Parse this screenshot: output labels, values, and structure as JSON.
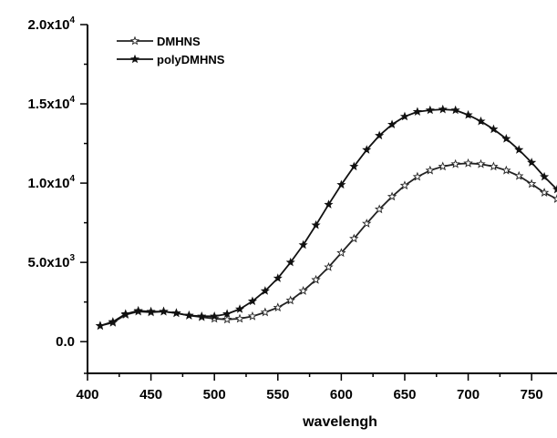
{
  "chart_data": {
    "type": "line",
    "title": "",
    "xlabel": "wavelengh",
    "ylabel": "",
    "xlim": [
      400,
      770
    ],
    "ylim": [
      -2000,
      20000
    ],
    "xticks": [
      400,
      450,
      500,
      550,
      600,
      650,
      700,
      750
    ],
    "xtick_labels": [
      "400",
      "450",
      "500",
      "550",
      "600",
      "650",
      "700",
      "750"
    ],
    "yticks": [
      0,
      5000,
      10000,
      15000,
      20000
    ],
    "ytick_labels": [
      {
        "base": "0.0",
        "exp": ""
      },
      {
        "base": "5.0x10",
        "exp": "3"
      },
      {
        "base": "1.0x10",
        "exp": "4"
      },
      {
        "base": "1.5x10",
        "exp": "4"
      },
      {
        "base": "2.0x10",
        "exp": "4"
      }
    ],
    "grid": false,
    "legend": {
      "position": "top-left"
    },
    "series": [
      {
        "name": "DMHNS",
        "marker": "open-star",
        "color": "#222222",
        "x": [
          410,
          420,
          430,
          440,
          450,
          460,
          470,
          480,
          490,
          500,
          510,
          520,
          530,
          540,
          550,
          560,
          570,
          580,
          590,
          600,
          610,
          620,
          630,
          640,
          650,
          660,
          670,
          680,
          690,
          700,
          710,
          720,
          730,
          740,
          750,
          760,
          770
        ],
        "values": [
          1000,
          1200,
          1700,
          1900,
          1850,
          1900,
          1800,
          1650,
          1550,
          1450,
          1400,
          1450,
          1600,
          1850,
          2150,
          2600,
          3200,
          3900,
          4700,
          5600,
          6500,
          7450,
          8350,
          9150,
          9850,
          10400,
          10800,
          11050,
          11200,
          11250,
          11200,
          11050,
          10800,
          10450,
          9950,
          9400,
          9000
        ]
      },
      {
        "name": "polyDMHNS",
        "marker": "filled-star",
        "color": "#111111",
        "x": [
          410,
          420,
          430,
          440,
          450,
          460,
          470,
          480,
          490,
          500,
          510,
          520,
          530,
          540,
          550,
          560,
          570,
          580,
          590,
          600,
          610,
          620,
          630,
          640,
          650,
          660,
          670,
          680,
          690,
          700,
          710,
          720,
          730,
          740,
          750,
          760,
          770
        ],
        "values": [
          1000,
          1250,
          1750,
          1950,
          1900,
          1900,
          1800,
          1650,
          1600,
          1600,
          1750,
          2050,
          2550,
          3200,
          4000,
          5000,
          6100,
          7350,
          8650,
          9900,
          11050,
          12100,
          13000,
          13700,
          14200,
          14500,
          14600,
          14650,
          14600,
          14300,
          13900,
          13400,
          12800,
          12100,
          11300,
          10400,
          9600
        ]
      }
    ]
  }
}
